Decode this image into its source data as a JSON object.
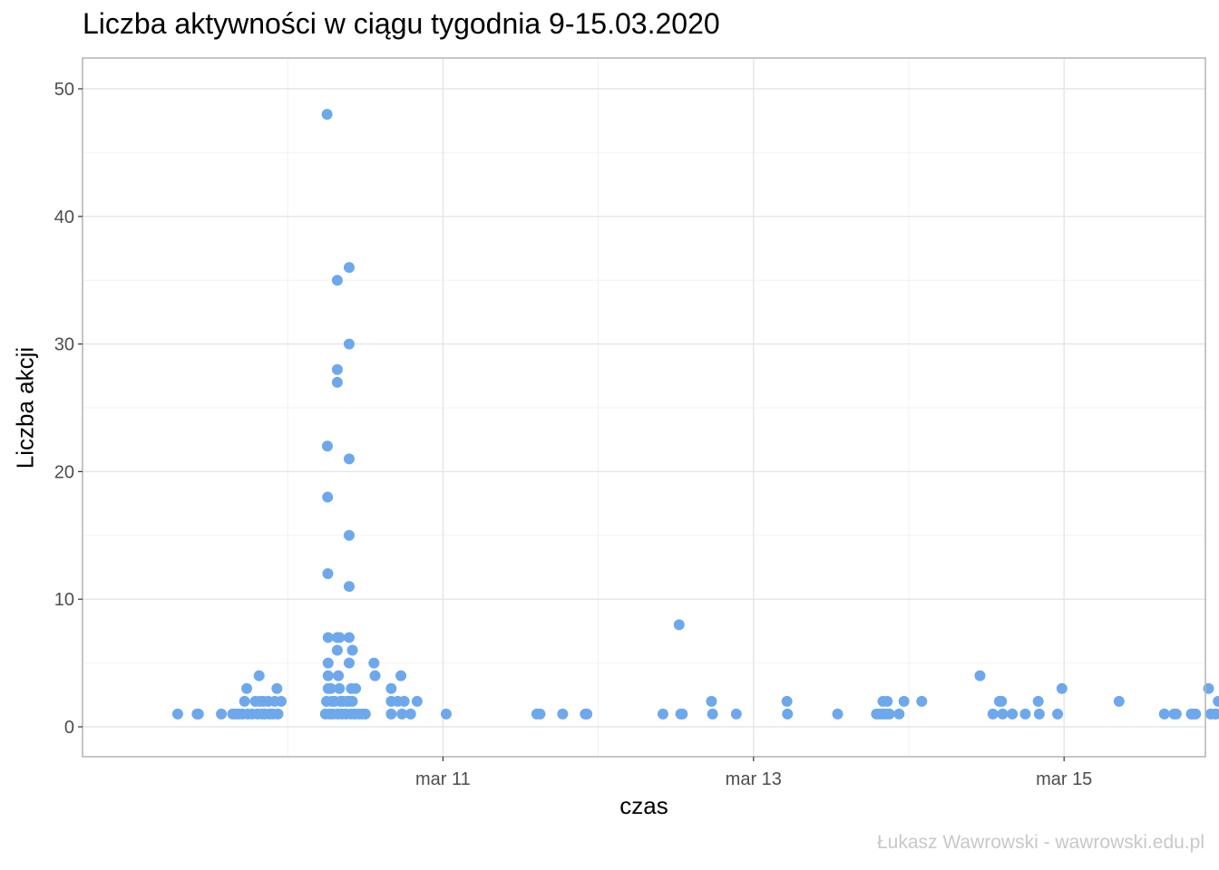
{
  "chart_data": {
    "type": "scatter",
    "title": "Liczba aktywności w ciągu tygodnia 9-15.03.2020",
    "xlabel": "czas",
    "ylabel": "Liczba akcji",
    "caption": "Łukasz Wawrowski - wawrowski.edu.pl",
    "xlim": [
      "2020-03-09T00:00",
      "2020-03-16T00:00"
    ],
    "ylim": [
      0,
      50
    ],
    "x_ticks": [
      {
        "label": "mar 11",
        "x": "2020-03-11T00:00"
      },
      {
        "label": "mar 13",
        "x": "2020-03-13T00:00"
      },
      {
        "label": "mar 15",
        "x": "2020-03-15T00:00"
      }
    ],
    "y_ticks": [
      0,
      10,
      20,
      30,
      40,
      50
    ],
    "grid": true,
    "point_color": "#6ea8ec",
    "points": [
      {
        "x": "2020-03-09T07:00",
        "y": 1
      },
      {
        "x": "2020-03-09T10:00",
        "y": 1
      },
      {
        "x": "2020-03-09T10:12",
        "y": 1
      },
      {
        "x": "2020-03-09T13:45",
        "y": 1
      },
      {
        "x": "2020-03-09T15:30",
        "y": 1
      },
      {
        "x": "2020-03-09T16:00",
        "y": 1
      },
      {
        "x": "2020-03-09T16:30",
        "y": 1
      },
      {
        "x": "2020-03-09T17:00",
        "y": 1
      },
      {
        "x": "2020-03-09T17:20",
        "y": 2
      },
      {
        "x": "2020-03-09T17:40",
        "y": 3
      },
      {
        "x": "2020-03-09T17:50",
        "y": 1
      },
      {
        "x": "2020-03-09T18:30",
        "y": 1
      },
      {
        "x": "2020-03-09T19:00",
        "y": 2
      },
      {
        "x": "2020-03-09T19:20",
        "y": 1
      },
      {
        "x": "2020-03-09T19:35",
        "y": 4
      },
      {
        "x": "2020-03-09T19:40",
        "y": 2
      },
      {
        "x": "2020-03-09T20:00",
        "y": 1
      },
      {
        "x": "2020-03-09T20:15",
        "y": 2
      },
      {
        "x": "2020-03-09T20:30",
        "y": 1
      },
      {
        "x": "2020-03-09T21:00",
        "y": 2
      },
      {
        "x": "2020-03-09T21:15",
        "y": 1
      },
      {
        "x": "2020-03-09T21:45",
        "y": 1
      },
      {
        "x": "2020-03-09T22:00",
        "y": 2
      },
      {
        "x": "2020-03-09T22:20",
        "y": 3
      },
      {
        "x": "2020-03-09T22:30",
        "y": 1
      },
      {
        "x": "2020-03-09T23:00",
        "y": 2
      },
      {
        "x": "2020-03-10T05:50",
        "y": 1
      },
      {
        "x": "2020-03-10T06:00",
        "y": 2
      },
      {
        "x": "2020-03-10T06:05",
        "y": 48
      },
      {
        "x": "2020-03-10T06:08",
        "y": 22
      },
      {
        "x": "2020-03-10T06:10",
        "y": 18
      },
      {
        "x": "2020-03-10T06:12",
        "y": 12
      },
      {
        "x": "2020-03-10T06:15",
        "y": 7
      },
      {
        "x": "2020-03-10T06:15",
        "y": 5
      },
      {
        "x": "2020-03-10T06:15",
        "y": 4
      },
      {
        "x": "2020-03-10T06:15",
        "y": 3
      },
      {
        "x": "2020-03-10T06:30",
        "y": 1
      },
      {
        "x": "2020-03-10T06:40",
        "y": 3
      },
      {
        "x": "2020-03-10T06:50",
        "y": 2
      },
      {
        "x": "2020-03-10T07:00",
        "y": 1
      },
      {
        "x": "2020-03-10T07:15",
        "y": 2
      },
      {
        "x": "2020-03-10T07:40",
        "y": 35
      },
      {
        "x": "2020-03-10T07:40",
        "y": 28
      },
      {
        "x": "2020-03-10T07:40",
        "y": 27
      },
      {
        "x": "2020-03-10T07:40",
        "y": 7
      },
      {
        "x": "2020-03-10T07:40",
        "y": 6
      },
      {
        "x": "2020-03-10T07:45",
        "y": 1
      },
      {
        "x": "2020-03-10T07:50",
        "y": 4
      },
      {
        "x": "2020-03-10T08:00",
        "y": 7
      },
      {
        "x": "2020-03-10T08:00",
        "y": 3
      },
      {
        "x": "2020-03-10T08:10",
        "y": 2
      },
      {
        "x": "2020-03-10T08:20",
        "y": 1
      },
      {
        "x": "2020-03-10T08:30",
        "y": 2
      },
      {
        "x": "2020-03-10T09:00",
        "y": 1
      },
      {
        "x": "2020-03-10T09:10",
        "y": 2
      },
      {
        "x": "2020-03-10T09:30",
        "y": 36
      },
      {
        "x": "2020-03-10T09:30",
        "y": 30
      },
      {
        "x": "2020-03-10T09:30",
        "y": 21
      },
      {
        "x": "2020-03-10T09:30",
        "y": 15
      },
      {
        "x": "2020-03-10T09:30",
        "y": 11
      },
      {
        "x": "2020-03-10T09:30",
        "y": 7
      },
      {
        "x": "2020-03-10T09:30",
        "y": 5
      },
      {
        "x": "2020-03-10T09:30",
        "y": 2
      },
      {
        "x": "2020-03-10T09:45",
        "y": 1
      },
      {
        "x": "2020-03-10T09:50",
        "y": 3
      },
      {
        "x": "2020-03-10T10:00",
        "y": 6
      },
      {
        "x": "2020-03-10T10:00",
        "y": 2
      },
      {
        "x": "2020-03-10T10:20",
        "y": 1
      },
      {
        "x": "2020-03-10T10:30",
        "y": 3
      },
      {
        "x": "2020-03-10T11:00",
        "y": 1
      },
      {
        "x": "2020-03-10T11:30",
        "y": 1
      },
      {
        "x": "2020-03-10T12:00",
        "y": 1
      },
      {
        "x": "2020-03-10T13:20",
        "y": 5
      },
      {
        "x": "2020-03-10T13:30",
        "y": 4
      },
      {
        "x": "2020-03-10T16:00",
        "y": 3
      },
      {
        "x": "2020-03-10T16:00",
        "y": 2
      },
      {
        "x": "2020-03-10T16:00",
        "y": 1
      },
      {
        "x": "2020-03-10T17:00",
        "y": 2
      },
      {
        "x": "2020-03-10T17:30",
        "y": 4
      },
      {
        "x": "2020-03-10T17:40",
        "y": 1
      },
      {
        "x": "2020-03-10T18:00",
        "y": 2
      },
      {
        "x": "2020-03-10T19:00",
        "y": 1
      },
      {
        "x": "2020-03-10T20:00",
        "y": 2
      },
      {
        "x": "2020-03-11T00:30",
        "y": 1
      },
      {
        "x": "2020-03-11T14:30",
        "y": 1
      },
      {
        "x": "2020-03-11T15:00",
        "y": 1
      },
      {
        "x": "2020-03-11T18:30",
        "y": 1
      },
      {
        "x": "2020-03-11T22:00",
        "y": 1
      },
      {
        "x": "2020-03-11T22:15",
        "y": 1
      },
      {
        "x": "2020-03-12T10:00",
        "y": 1
      },
      {
        "x": "2020-03-12T12:30",
        "y": 8
      },
      {
        "x": "2020-03-12T12:45",
        "y": 1
      },
      {
        "x": "2020-03-12T13:00",
        "y": 1
      },
      {
        "x": "2020-03-12T17:30",
        "y": 2
      },
      {
        "x": "2020-03-12T17:40",
        "y": 1
      },
      {
        "x": "2020-03-12T21:20",
        "y": 1
      },
      {
        "x": "2020-03-13T05:10",
        "y": 2
      },
      {
        "x": "2020-03-13T05:15",
        "y": 1
      },
      {
        "x": "2020-03-13T13:00",
        "y": 1
      },
      {
        "x": "2020-03-13T19:00",
        "y": 1
      },
      {
        "x": "2020-03-13T19:30",
        "y": 1
      },
      {
        "x": "2020-03-13T20:00",
        "y": 2
      },
      {
        "x": "2020-03-13T20:00",
        "y": 1
      },
      {
        "x": "2020-03-13T20:30",
        "y": 1
      },
      {
        "x": "2020-03-13T20:40",
        "y": 2
      },
      {
        "x": "2020-03-13T21:00",
        "y": 1
      },
      {
        "x": "2020-03-13T22:30",
        "y": 1
      },
      {
        "x": "2020-03-13T23:15",
        "y": 2
      },
      {
        "x": "2020-03-14T02:00",
        "y": 2
      },
      {
        "x": "2020-03-14T11:00",
        "y": 4
      },
      {
        "x": "2020-03-14T13:00",
        "y": 1
      },
      {
        "x": "2020-03-14T14:00",
        "y": 2
      },
      {
        "x": "2020-03-14T14:20",
        "y": 2
      },
      {
        "x": "2020-03-14T14:30",
        "y": 1
      },
      {
        "x": "2020-03-14T16:00",
        "y": 1
      },
      {
        "x": "2020-03-14T18:00",
        "y": 1
      },
      {
        "x": "2020-03-14T20:00",
        "y": 2
      },
      {
        "x": "2020-03-14T20:10",
        "y": 1
      },
      {
        "x": "2020-03-14T23:00",
        "y": 1
      },
      {
        "x": "2020-03-14T23:40",
        "y": 3
      },
      {
        "x": "2020-03-15T08:30",
        "y": 2
      },
      {
        "x": "2020-03-15T15:30",
        "y": 1
      },
      {
        "x": "2020-03-15T17:00",
        "y": 1
      },
      {
        "x": "2020-03-15T17:20",
        "y": 1
      },
      {
        "x": "2020-03-15T19:40",
        "y": 1
      },
      {
        "x": "2020-03-15T20:00",
        "y": 1
      },
      {
        "x": "2020-03-15T20:20",
        "y": 1
      },
      {
        "x": "2020-03-15T22:20",
        "y": 3
      },
      {
        "x": "2020-03-15T22:40",
        "y": 1
      },
      {
        "x": "2020-03-15T23:20",
        "y": 1
      },
      {
        "x": "2020-03-15T23:30",
        "y": 1
      },
      {
        "x": "2020-03-15T23:50",
        "y": 2
      }
    ]
  }
}
